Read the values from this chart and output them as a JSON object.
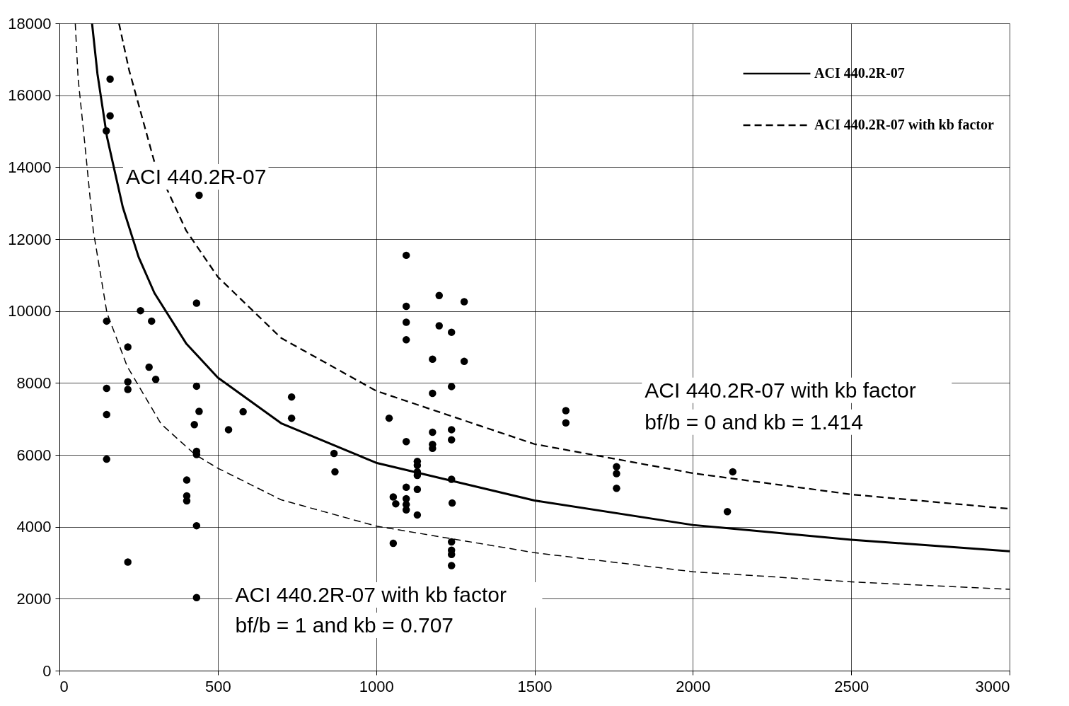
{
  "chart_data": {
    "type": "scatter",
    "xlim": [
      0,
      3000
    ],
    "ylim": [
      0,
      18000
    ],
    "xticks": [
      0,
      500,
      1000,
      1500,
      2000,
      2500,
      3000
    ],
    "yticks": [
      0,
      2000,
      4000,
      6000,
      8000,
      10000,
      12000,
      14000,
      16000,
      18000
    ],
    "grid": true,
    "legend": "top right",
    "annotations": [
      "ACI 440.2R-07",
      "ACI 440.2R-07 with kb factor",
      "bf/b = 0 and kb = 1.414",
      "ACI 440.2R-07 with kb factor",
      "bf/b = 1 and kb = 0.707"
    ],
    "series": [
      {
        "color": "#000000",
        "marker": "circle",
        "x": [
          160,
          160,
          148,
          441,
          433,
          256,
          149,
          291,
          216,
          283,
          304,
          216,
          216,
          149,
          433,
          441,
          149,
          426,
          433,
          433,
          149,
          402,
          402,
          402,
          433,
          216,
          433,
          534,
          580,
          733,
          733,
          867,
          870,
          1199,
          1278,
          1095,
          1095,
          1095,
          1199,
          1238,
          1095,
          1178,
          1278,
          1238,
          1178,
          1041,
          1178,
          1238,
          1238,
          1095,
          1178,
          1178,
          1130,
          1130,
          1130,
          1130,
          1238,
          1095,
          1130,
          1054,
          1062,
          1095,
          1095,
          1095,
          1130,
          1240,
          1054,
          1238,
          1238,
          1238,
          1238,
          1599,
          1599,
          1759,
          1759,
          1759,
          2126,
          2109
        ],
        "values": [
          16450,
          15430,
          15010,
          13220,
          10220,
          10010,
          9720,
          9720,
          9000,
          8440,
          8100,
          8030,
          7820,
          7850,
          7910,
          7210,
          7120,
          6840,
          6100,
          6010,
          5880,
          5300,
          4860,
          4720,
          4030,
          3020,
          2030,
          6700,
          7200,
          7610,
          7020,
          6040,
          5530,
          10430,
          10260,
          10130,
          9690,
          11550,
          9590,
          9410,
          9200,
          8660,
          8600,
          7900,
          7710,
          7020,
          6630,
          6700,
          6420,
          6370,
          6290,
          6180,
          5820,
          5710,
          5530,
          5430,
          5320,
          5100,
          5040,
          4830,
          4640,
          4780,
          4620,
          4470,
          4330,
          4660,
          3540,
          3580,
          3350,
          3230,
          2920,
          7230,
          6890,
          5670,
          5480,
          5070,
          5530,
          4420
        ]
      },
      {
        "type": "line",
        "name": "ACI 440.2R-07",
        "color": "#000000",
        "line_style": "solid",
        "x": [
          103,
          120,
          150,
          200,
          250,
          300,
          400,
          500,
          700,
          1000,
          1500,
          2000,
          2500,
          3000
        ],
        "values": [
          18000,
          16600,
          14850,
          12890,
          11500,
          10500,
          9100,
          8150,
          6880,
          5780,
          4730,
          4050,
          3640,
          3320
        ]
      },
      {
        "type": "line",
        "name": "ACI 440.2R-07 with kb factor",
        "color": "#000000",
        "line_style": "dashed",
        "x": [
          188,
          220,
          300,
          400,
          500,
          700,
          1000,
          1500,
          2000,
          2500,
          3000
        ],
        "values": [
          18000,
          16700,
          14140,
          12240,
          10950,
          9250,
          7780,
          6300,
          5490,
          4900,
          4500
        ]
      },
      {
        "type": "line",
        "color": "#000000",
        "line_style": "dashed",
        "x": [
          50,
          59,
          81,
          107,
          150,
          214,
          321,
          428,
          500,
          700,
          1000,
          1500,
          2000,
          2500,
          3000
        ],
        "values": [
          18000,
          16470,
          14580,
          12230,
          9950,
          8460,
          6860,
          6010,
          5630,
          4750,
          4020,
          3280,
          2750,
          2470,
          2260
        ]
      }
    ]
  }
}
